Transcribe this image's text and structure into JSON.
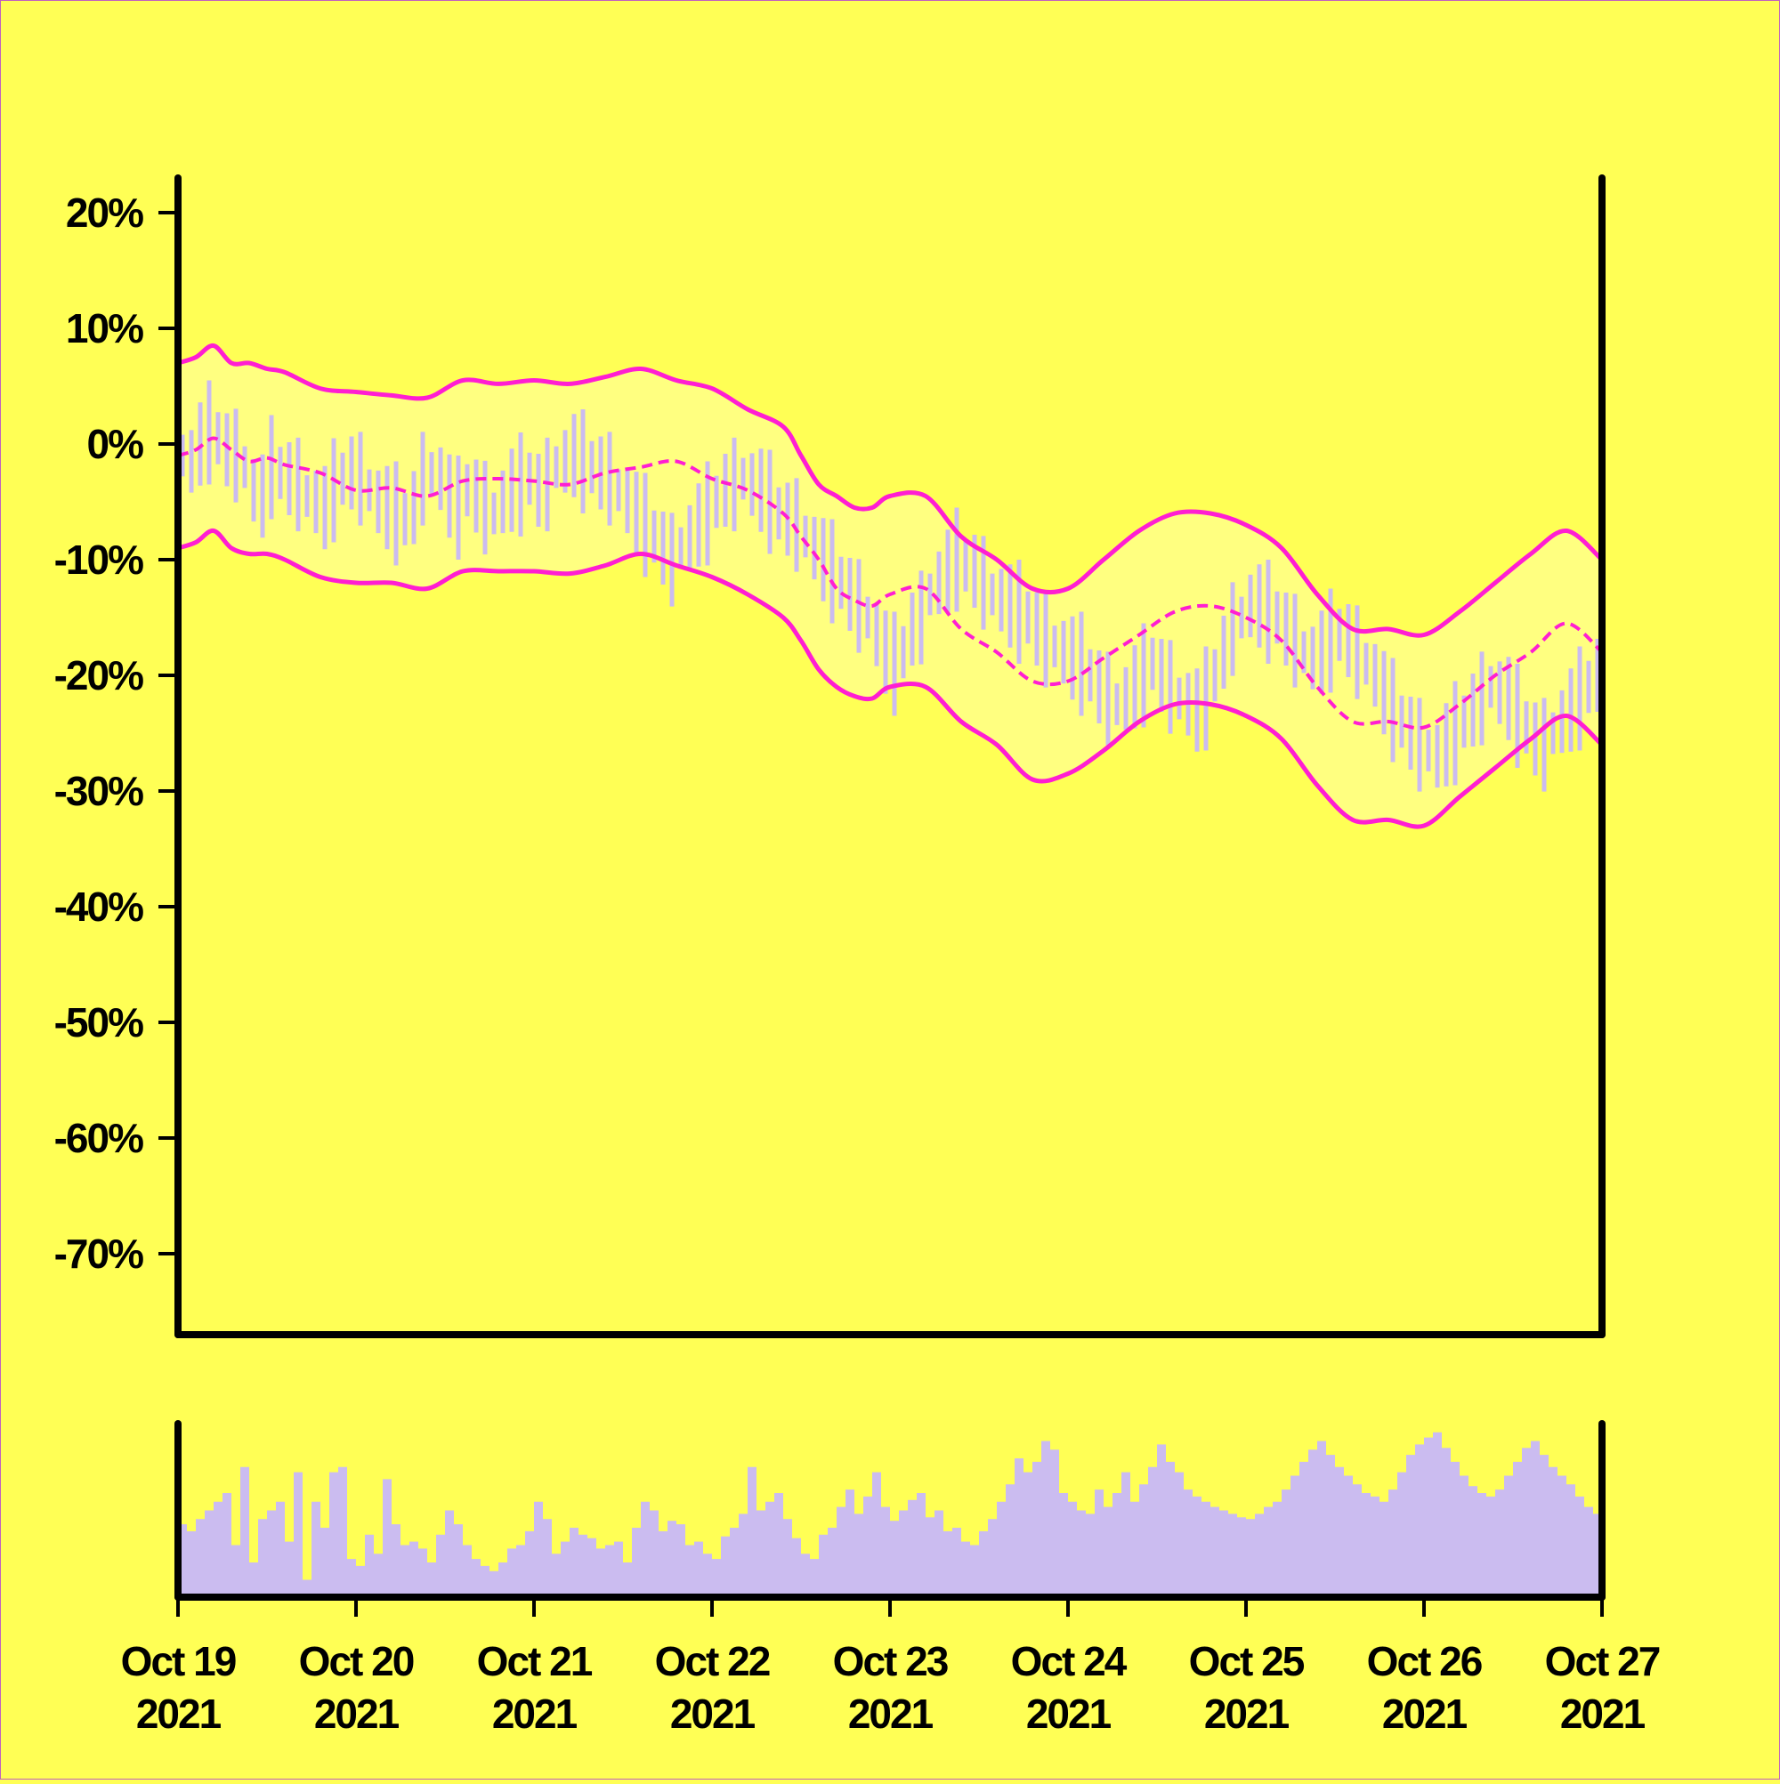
{
  "chart_data": {
    "type": "line",
    "title": "",
    "xlabel": "",
    "ylabel": "",
    "colors": {
      "background": "#ffff55",
      "band_fill": "#ffff80",
      "band_line": "#ff1ed2",
      "candle": "#cbbcf0",
      "volume": "#cbbcf0",
      "axis": "#000000"
    },
    "x_ticks": [
      {
        "date": "2021-10-19",
        "line1": "Oct 19",
        "line2": "2021"
      },
      {
        "date": "2021-10-20",
        "line1": "Oct 20",
        "line2": "2021"
      },
      {
        "date": "2021-10-21",
        "line1": "Oct 21",
        "line2": "2021"
      },
      {
        "date": "2021-10-22",
        "line1": "Oct 22",
        "line2": "2021"
      },
      {
        "date": "2021-10-23",
        "line1": "Oct 23",
        "line2": "2021"
      },
      {
        "date": "2021-10-24",
        "line1": "Oct 24",
        "line2": "2021"
      },
      {
        "date": "2021-10-25",
        "line1": "Oct 25",
        "line2": "2021"
      },
      {
        "date": "2021-10-26",
        "line1": "Oct 26",
        "line2": "2021"
      },
      {
        "date": "2021-10-27",
        "line1": "Oct 27",
        "line2": "2021"
      }
    ],
    "xlim": [
      "2021-10-19",
      "2021-10-27"
    ],
    "y_ticks": [
      {
        "value": 20,
        "label": "20%"
      },
      {
        "value": 10,
        "label": "10%"
      },
      {
        "value": 0,
        "label": "0%"
      },
      {
        "value": -10,
        "label": "-10%"
      },
      {
        "value": -20,
        "label": "-20%"
      },
      {
        "value": -30,
        "label": "-30%"
      },
      {
        "value": -40,
        "label": "-40%"
      },
      {
        "value": -50,
        "label": "-50%"
      },
      {
        "value": -60,
        "label": "-60%"
      },
      {
        "value": -70,
        "label": "-70%"
      }
    ],
    "ylim": [
      -77,
      23
    ],
    "band": {
      "time_days": [
        0,
        0.1,
        0.2,
        0.3,
        0.4,
        0.5,
        0.6,
        0.8,
        1,
        1.2,
        1.4,
        1.6,
        1.8,
        2,
        2.2,
        2.4,
        2.6,
        2.8,
        3,
        3.2,
        3.4,
        3.5,
        3.6,
        3.7,
        3.8,
        3.9,
        4,
        4.2,
        4.4,
        4.6,
        4.8,
        5,
        5.2,
        5.4,
        5.6,
        5.8,
        6,
        6.2,
        6.4,
        6.6,
        6.8,
        7,
        7.2,
        7.4,
        7.6,
        7.8,
        8
      ],
      "middle": [
        -1,
        -0.5,
        0.5,
        -0.5,
        -1.5,
        -1.2,
        -1.8,
        -2.5,
        -4,
        -3.8,
        -4.5,
        -3.2,
        -3,
        -3.2,
        -3.5,
        -2.5,
        -2,
        -1.5,
        -3,
        -4,
        -6,
        -8,
        -10,
        -12.5,
        -13.5,
        -14,
        -13,
        -12.5,
        -16,
        -18,
        -20.5,
        -20.5,
        -18.5,
        -16.5,
        -14.5,
        -14,
        -15,
        -17,
        -21,
        -24,
        -24,
        -24.5,
        -22.5,
        -20,
        -18,
        -15.5,
        -18
      ],
      "upper": [
        7,
        7.5,
        8.5,
        7,
        7,
        6.5,
        6.2,
        4.8,
        4.5,
        4.2,
        4,
        5.5,
        5.2,
        5.5,
        5.2,
        5.8,
        6.5,
        5.5,
        4.8,
        3,
        1.5,
        -1,
        -3.5,
        -4.5,
        -5.5,
        -5.5,
        -4.5,
        -4.5,
        -8,
        -10,
        -12.5,
        -12.5,
        -10,
        -7.5,
        -6,
        -6,
        -7,
        -9,
        -13,
        -16,
        -16,
        -16.5,
        -14.5,
        -12,
        -9.5,
        -7.5,
        -10
      ],
      "lower": [
        -9,
        -8.5,
        -7.5,
        -9,
        -9.5,
        -9.5,
        -10,
        -11.5,
        -12,
        -12,
        -12.5,
        -11,
        -11,
        -11,
        -11.2,
        -10.5,
        -9.5,
        -10.5,
        -11.5,
        -13,
        -15,
        -17,
        -19.5,
        -21,
        -21.8,
        -22,
        -21,
        -21,
        -24,
        -26,
        -29,
        -28.5,
        -26.5,
        -24,
        -22.5,
        -22.5,
        -23.5,
        -25.5,
        -29.5,
        -32.5,
        -32.5,
        -33,
        -30.5,
        -28,
        -25.5,
        -23.5,
        -26
      ]
    },
    "candles": {
      "interval_days": 0.05,
      "center": [
        -1,
        -1.5,
        0,
        1,
        0.5,
        -0.5,
        -1,
        -2,
        -4,
        -4.5,
        -2,
        -2.5,
        -3,
        -3.5,
        -4.5,
        -5,
        -5.5,
        -4,
        -3,
        -2.5,
        -3,
        -4,
        -5,
        -5.5,
        -6,
        -6.5,
        -5.5,
        -3,
        -2.5,
        -3,
        -4.5,
        -5.5,
        -4,
        -4.5,
        -5.5,
        -6,
        -5,
        -4,
        -3.5,
        -3,
        -4,
        -3.5,
        -2,
        -1.5,
        -1,
        -1.5,
        -2,
        -2.5,
        -3,
        -4,
        -5,
        -6,
        -7,
        -8,
        -9,
        -10,
        -9,
        -8,
        -7,
        -6,
        -5,
        -4,
        -3.5,
        -3,
        -3.5,
        -4,
        -5,
        -6,
        -6.5,
        -7,
        -8,
        -9,
        -10,
        -11,
        -12,
        -13,
        -14,
        -15,
        -16.5,
        -18,
        -19,
        -18,
        -16,
        -15,
        -13,
        -12,
        -11,
        -10,
        -10.5,
        -11,
        -12,
        -13,
        -13.5,
        -14,
        -14.5,
        -15,
        -16,
        -17,
        -17.5,
        -18,
        -18.5,
        -19,
        -20,
        -21,
        -22,
        -22.5,
        -22,
        -21,
        -20,
        -19,
        -20,
        -21,
        -22,
        -22.5,
        -23,
        -22,
        -20,
        -18,
        -16,
        -15,
        -14,
        -14,
        -14.5,
        -15,
        -16,
        -17,
        -18,
        -18.5,
        -18,
        -17,
        -16.5,
        -17,
        -18,
        -19,
        -20,
        -21.5,
        -23,
        -24,
        -25,
        -26,
        -26.5,
        -27,
        -26,
        -25,
        -24,
        -23,
        -22,
        -21,
        -21.5,
        -22,
        -23.5,
        -24.5,
        -25.5,
        -26,
        -25,
        -24,
        -23,
        -22,
        -21,
        -20,
        -19,
        -18,
        -17,
        -16,
        -15,
        -14,
        -13.5,
        -13,
        -13.5,
        -14,
        -15,
        -16,
        -17,
        -18,
        -18.5,
        -19,
        -19.5,
        -19,
        -18.5,
        -18,
        -17.5,
        -17,
        -16.5,
        -16
      ]
    },
    "volume": {
      "interval_days": 0.05,
      "values": [
        0.42,
        0.38,
        0.45,
        0.5,
        0.55,
        0.6,
        0.3,
        0.75,
        0.2,
        0.45,
        0.5,
        0.55,
        0.32,
        0.72,
        0.1,
        0.55,
        0.4,
        0.72,
        0.75,
        0.22,
        0.18,
        0.36,
        0.25,
        0.68,
        0.42,
        0.3,
        0.32,
        0.28,
        0.2,
        0.36,
        0.5,
        0.42,
        0.3,
        0.22,
        0.18,
        0.15,
        0.2,
        0.28,
        0.3,
        0.38,
        0.55,
        0.45,
        0.25,
        0.32,
        0.4,
        0.36,
        0.34,
        0.28,
        0.3,
        0.32,
        0.2,
        0.4,
        0.55,
        0.5,
        0.38,
        0.44,
        0.42,
        0.3,
        0.32,
        0.25,
        0.22,
        0.35,
        0.4,
        0.48,
        0.75,
        0.5,
        0.55,
        0.6,
        0.45,
        0.34,
        0.25,
        0.22,
        0.36,
        0.4,
        0.52,
        0.62,
        0.48,
        0.58,
        0.72,
        0.52,
        0.44,
        0.5,
        0.56,
        0.6,
        0.46,
        0.5,
        0.38,
        0.4,
        0.32,
        0.3,
        0.38,
        0.45,
        0.55,
        0.65,
        0.8,
        0.72,
        0.78,
        0.9,
        0.85,
        0.6,
        0.55,
        0.5,
        0.48,
        0.62,
        0.52,
        0.6,
        0.72,
        0.55,
        0.65,
        0.75,
        0.88,
        0.78,
        0.72,
        0.62,
        0.58,
        0.55,
        0.52,
        0.5,
        0.48,
        0.46,
        0.45,
        0.48,
        0.52,
        0.55,
        0.62,
        0.7,
        0.78,
        0.85,
        0.9,
        0.82,
        0.75,
        0.7,
        0.65,
        0.6,
        0.58,
        0.55,
        0.62,
        0.72,
        0.82,
        0.88,
        0.92,
        0.95,
        0.86,
        0.78,
        0.7,
        0.64,
        0.6,
        0.58,
        0.62,
        0.7,
        0.78,
        0.86,
        0.9,
        0.82,
        0.75,
        0.7,
        0.65,
        0.58,
        0.52,
        0.48,
        0.45,
        0.5,
        0.56,
        0.62,
        0.7,
        0.75,
        0.68,
        0.62,
        0.55,
        0.5,
        0.45,
        0.4,
        0.35,
        0.32,
        0.3,
        0.28,
        0.3,
        0.32,
        0.3,
        0.28,
        0.26,
        0.25
      ]
    }
  }
}
